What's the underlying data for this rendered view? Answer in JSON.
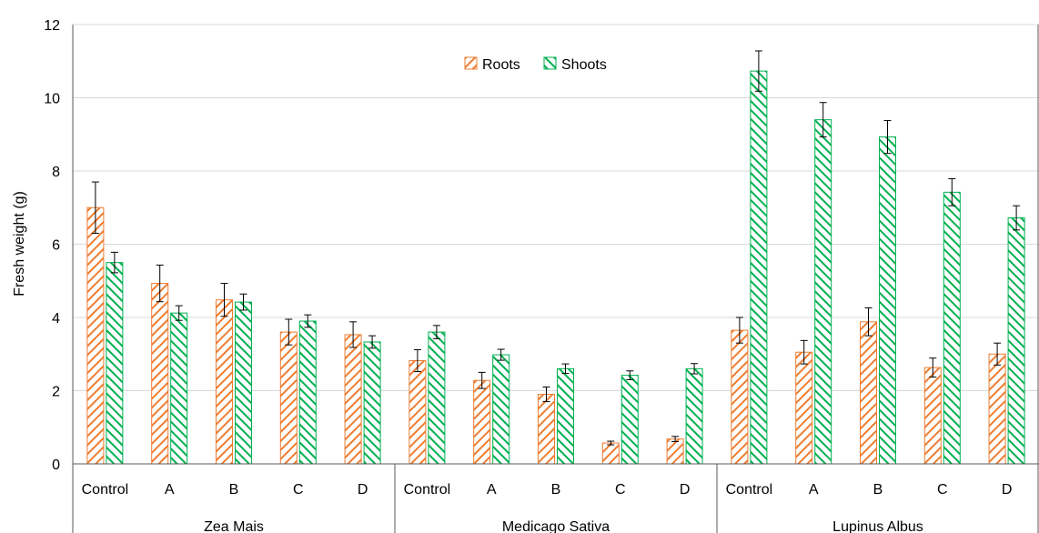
{
  "chart_data": {
    "type": "bar",
    "ylabel": "Fresh weight (g)",
    "ylim": [
      0,
      12
    ],
    "yticks": [
      0,
      2,
      4,
      6,
      8,
      10,
      12
    ],
    "grid": "horizontal",
    "legend_position": "top-center",
    "error_bars": true,
    "groups": [
      {
        "name": "Zea Mais",
        "categories": [
          "Control",
          "A",
          "B",
          "C",
          "D"
        ],
        "series": [
          {
            "name": "Roots",
            "values": [
              7.0,
              4.93,
              4.48,
              3.6,
              3.53
            ],
            "errors": [
              0.7,
              0.5,
              0.45,
              0.35,
              0.35
            ]
          },
          {
            "name": "Shoots",
            "values": [
              5.5,
              4.12,
              4.42,
              3.9,
              3.33
            ],
            "errors": [
              0.28,
              0.2,
              0.22,
              0.17,
              0.17
            ]
          }
        ]
      },
      {
        "name": "Medicago Sativa",
        "categories": [
          "Control",
          "A",
          "B",
          "C",
          "D"
        ],
        "series": [
          {
            "name": "Roots",
            "values": [
              2.82,
              2.28,
              1.9,
              0.57,
              0.68
            ],
            "errors": [
              0.3,
              0.22,
              0.2,
              0.05,
              0.07
            ]
          },
          {
            "name": "Shoots",
            "values": [
              3.6,
              2.98,
              2.6,
              2.42,
              2.6
            ],
            "errors": [
              0.18,
              0.15,
              0.13,
              0.12,
              0.14
            ]
          }
        ]
      },
      {
        "name": "Lupinus Albus",
        "categories": [
          "Control",
          "A",
          "B",
          "C",
          "D"
        ],
        "series": [
          {
            "name": "Roots",
            "values": [
              3.65,
              3.05,
              3.88,
              2.63,
              3.0
            ],
            "errors": [
              0.35,
              0.32,
              0.38,
              0.26,
              0.3
            ]
          },
          {
            "name": "Shoots",
            "values": [
              10.73,
              9.4,
              8.93,
              7.42,
              6.72
            ],
            "errors": [
              0.55,
              0.47,
              0.45,
              0.37,
              0.33
            ]
          }
        ]
      }
    ],
    "colors": {
      "Roots": "#ED7D31",
      "Shoots": "#00B050"
    }
  }
}
